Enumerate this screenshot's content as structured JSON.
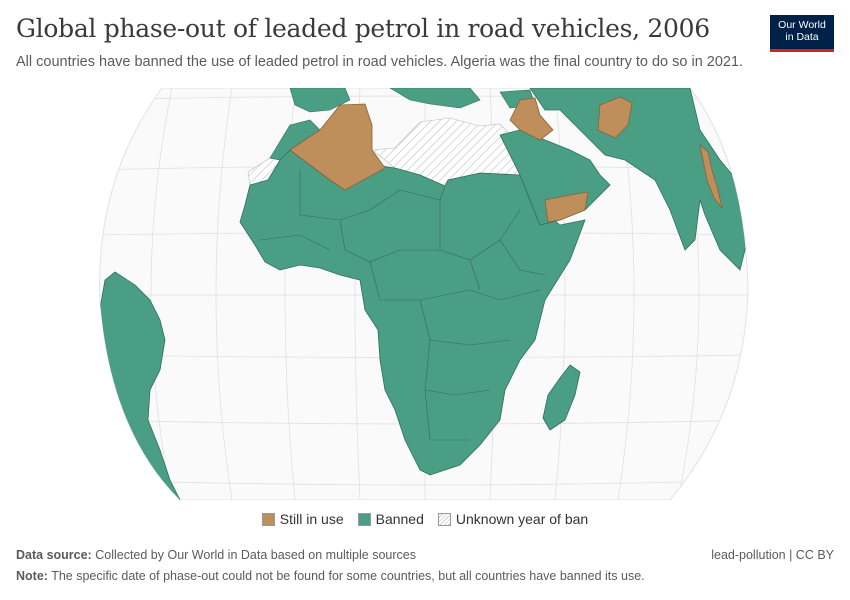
{
  "header": {
    "title": "Global phase-out of leaded petrol in road vehicles, 2006",
    "subtitle": "All countries have banned the use of leaded petrol in road vehicles. Algeria was the final country to do so in 2021."
  },
  "logo": {
    "line1": "Our World",
    "line2": "in Data"
  },
  "legend": [
    {
      "label": "Still in use",
      "color": "#be8f5b",
      "pattern": "solid"
    },
    {
      "label": "Banned",
      "color": "#4a9e84",
      "pattern": "solid"
    },
    {
      "label": "Unknown year of ban",
      "color": "#ffffff",
      "pattern": "hatched"
    }
  ],
  "map": {
    "year": "2006",
    "regions_still_in_use": [
      "Algeria",
      "Iraq",
      "Afghanistan",
      "Yemen",
      "Myanmar"
    ],
    "regions_unknown": [
      "Libya",
      "Egypt",
      "Western Sahara"
    ],
    "colors": {
      "still": "#be8f5b",
      "banned": "#4a9e84",
      "unknown": "#f4f4f4",
      "ocean": "#fafafa",
      "grid": "#dddddd",
      "border": "#3a6e5e"
    }
  },
  "footer": {
    "source_label": "Data source:",
    "source_text": "Collected by Our World in Data based on multiple sources",
    "license": "lead-pollution | CC BY",
    "note_label": "Note:",
    "note_text": "The specific date of phase-out could not be found for some countries, but all countries have banned its use."
  }
}
